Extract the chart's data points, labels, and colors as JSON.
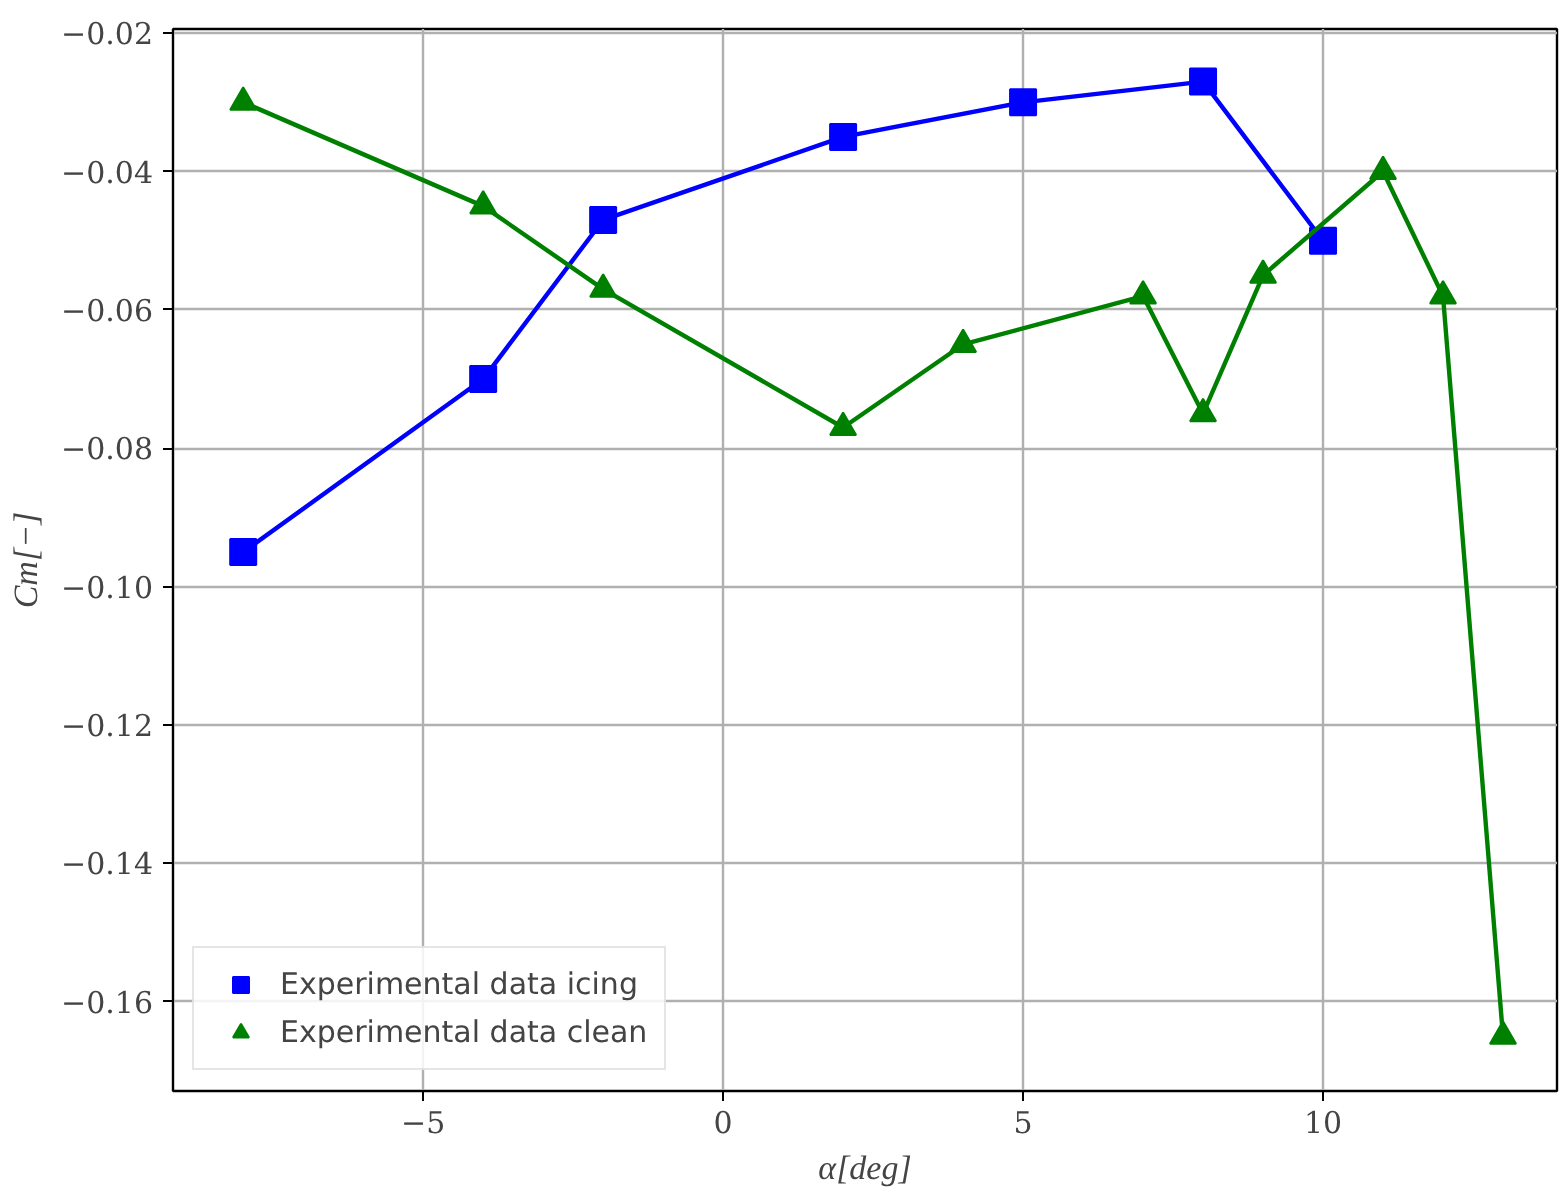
{
  "chart_data": {
    "type": "line",
    "xlabel": "α[deg]",
    "ylabel": "Cm[−]",
    "xlim": [
      -9.17,
      13.9
    ],
    "ylim": [
      -0.1729,
      -0.0194
    ],
    "xticks": [
      {
        "value": -5,
        "label": "−5"
      },
      0,
      5,
      10
    ],
    "yticks": [
      {
        "value": -0.16,
        "label": "−0.16"
      },
      {
        "value": -0.14,
        "label": "−0.14"
      },
      {
        "value": -0.12,
        "label": "−0.12"
      },
      {
        "value": -0.1,
        "label": "−0.10"
      },
      {
        "value": -0.08,
        "label": "−0.08"
      },
      {
        "value": -0.06,
        "label": "−0.06"
      },
      {
        "value": -0.04,
        "label": "−0.04"
      },
      {
        "value": -0.02,
        "label": "−0.02"
      }
    ],
    "grid": true,
    "legend": "bottom left",
    "line_style": "solid",
    "series": [
      {
        "name": "Experimental data icing",
        "color": "#0000ff",
        "marker": "square",
        "x": [
          -8,
          -4,
          -2,
          2,
          5,
          8,
          10
        ],
        "values": [
          -0.095,
          -0.07,
          -0.047,
          -0.035,
          -0.03,
          -0.027,
          -0.05
        ]
      },
      {
        "name": "Experimental data clean",
        "color": "#008000",
        "marker": "triangle",
        "x": [
          -8,
          -4,
          -2,
          2,
          4,
          7,
          8,
          9,
          11,
          12,
          13
        ],
        "values": [
          -0.03,
          -0.045,
          -0.057,
          -0.077,
          -0.065,
          -0.058,
          -0.075,
          -0.055,
          -0.04,
          -0.058,
          -0.165
        ]
      }
    ]
  }
}
